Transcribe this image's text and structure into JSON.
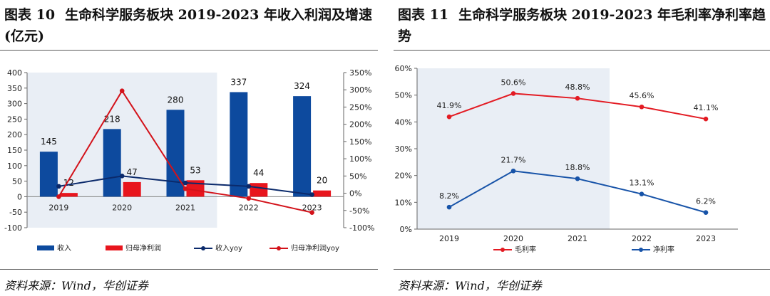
{
  "left": {
    "figure_label": "图表 10",
    "figure_title": "生命科学服务板块 2019-2023 年收入利润及增速(亿元)",
    "source": "资料来源：Wind，华创证券",
    "colors": {
      "revenue": "#0d4a9e",
      "profit": "#e8151d",
      "revenue_yoy": "#0b2a6b",
      "profit_yoy": "#d3121a",
      "highlight": "#e9eef5"
    },
    "chart_data": {
      "type": "bar",
      "categories": [
        "2019",
        "2020",
        "2021",
        "2022",
        "2023"
      ],
      "series": [
        {
          "name": "收入",
          "kind": "bar",
          "axis": "left",
          "values": [
            145,
            218,
            280,
            337,
            324
          ],
          "labels": [
            "145",
            "218",
            "280",
            "337",
            "324"
          ]
        },
        {
          "name": "归母净利润",
          "kind": "bar",
          "axis": "left",
          "values": [
            12,
            47,
            53,
            44,
            20
          ],
          "labels": [
            "12",
            "47",
            "53",
            "44",
            "20"
          ]
        },
        {
          "name": "收入yoy",
          "kind": "line",
          "axis": "right",
          "values": [
            20,
            50,
            30,
            20,
            -4
          ]
        },
        {
          "name": "归母净利润yoy",
          "kind": "line",
          "axis": "right",
          "values": [
            -10,
            297,
            13,
            -15,
            -56
          ]
        }
      ],
      "ylim_left": [
        -100,
        400
      ],
      "yticks_left": [
        "-100",
        "-50",
        "0",
        "50",
        "100",
        "150",
        "200",
        "250",
        "300",
        "350",
        "400"
      ],
      "ylim_right": [
        -100,
        350
      ],
      "yticks_right": [
        "-100%",
        "-50%",
        "0%",
        "50%",
        "100%",
        "150%",
        "200%",
        "250%",
        "300%",
        "350%"
      ],
      "legend_position": "bottom",
      "grid": false,
      "highlight_range": [
        "2019",
        "2021"
      ]
    }
  },
  "right": {
    "figure_label": "图表 11",
    "figure_title": "生命科学服务板块 2019-2023 年毛利率净利率趋势",
    "source": "资料来源：Wind，华创证券",
    "colors": {
      "gross": "#e31b23",
      "net": "#1753a8",
      "highlight": "#e9eef5"
    },
    "chart_data": {
      "type": "line",
      "categories": [
        "2019",
        "2020",
        "2021",
        "2022",
        "2023"
      ],
      "series": [
        {
          "name": "毛利率",
          "values": [
            41.9,
            50.6,
            48.8,
            45.6,
            41.1
          ],
          "labels": [
            "41.9%",
            "50.6%",
            "48.8%",
            "45.6%",
            "41.1%"
          ]
        },
        {
          "name": "净利率",
          "values": [
            8.2,
            21.7,
            18.8,
            13.1,
            6.2
          ],
          "labels": [
            "8.2%",
            "21.7%",
            "18.8%",
            "13.1%",
            "6.2%"
          ]
        }
      ],
      "ylim": [
        0,
        60
      ],
      "yticks": [
        "0%",
        "10%",
        "20%",
        "30%",
        "40%",
        "50%",
        "60%"
      ],
      "legend_position": "bottom",
      "grid": false,
      "highlight_range": [
        "2019",
        "2021"
      ]
    }
  }
}
